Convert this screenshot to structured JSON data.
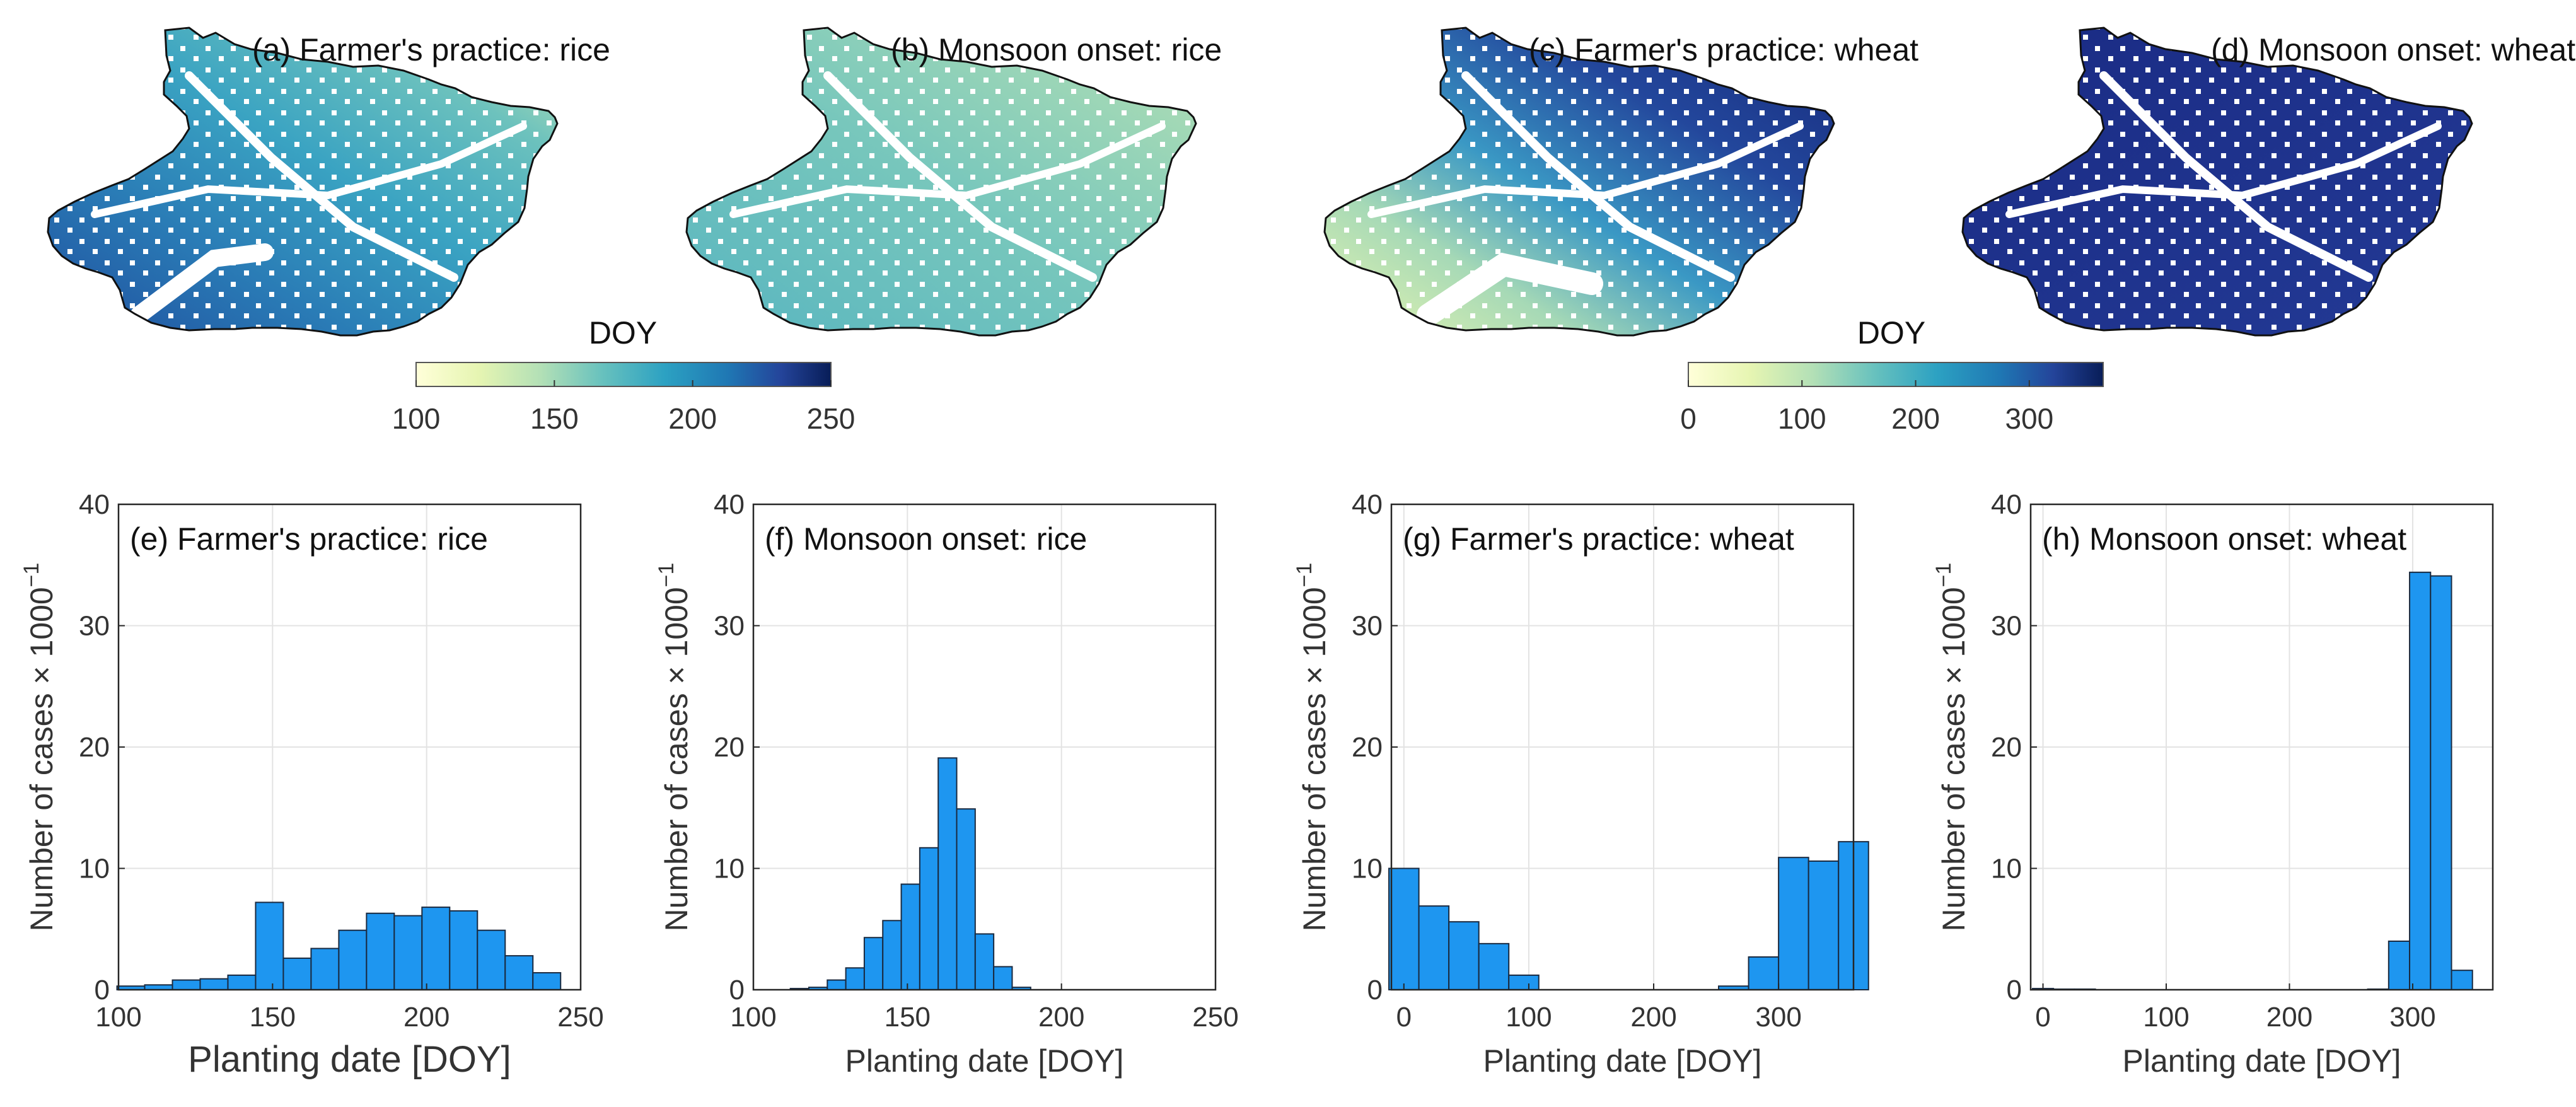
{
  "colorbars": [
    {
      "label": "DOY",
      "ticks": [
        "100",
        "150",
        "200",
        "250"
      ],
      "min": 100,
      "max": 250
    },
    {
      "label": "DOY",
      "ticks": [
        "0",
        "100",
        "200",
        "300"
      ],
      "min": 0,
      "max": 365
    }
  ],
  "colormap": [
    "#ffffd9",
    "#edf8b1",
    "#c7e9b4",
    "#7fcdbb",
    "#41b6c4",
    "#1d91c0",
    "#225ea8",
    "#253494",
    "#081d58"
  ],
  "maps": [
    {
      "title": "(a) Farmer's practice: rice",
      "scale": 0
    },
    {
      "title": "(b) Monsoon onset: rice",
      "scale": 0
    },
    {
      "title": "(c) Farmer's practice: wheat",
      "scale": 1
    },
    {
      "title": "(d) Monsoon onset: wheat",
      "scale": 1
    }
  ],
  "chart_data": [
    {
      "type": "bar",
      "title": "(e) Farmer's practice: rice",
      "xlabel": "Planting date [DOY]",
      "ylabel": "Number of cases × 1000",
      "ylabel_exp": "−1",
      "xlim": [
        100,
        250
      ],
      "ylim": [
        0,
        40
      ],
      "xticks": [
        100,
        150,
        200,
        250
      ],
      "yticks": [
        0,
        10,
        20,
        30,
        40
      ],
      "bin_width": 9,
      "x": [
        104,
        113,
        122,
        131,
        140,
        149,
        158,
        167,
        176,
        185,
        194,
        203,
        212,
        221,
        230,
        239
      ],
      "values": [
        0.3,
        0.4,
        0.8,
        0.9,
        1.2,
        7.2,
        2.6,
        3.4,
        4.9,
        6.3,
        6.1,
        6.8,
        6.5,
        4.9,
        2.8,
        1.4
      ]
    },
    {
      "type": "bar",
      "title": "(f) Monsoon onset: rice",
      "xlabel": "Planting date [DOY]",
      "ylabel": "Number of cases × 1000",
      "ylabel_exp": "−1",
      "xlim": [
        100,
        250
      ],
      "ylim": [
        0,
        40
      ],
      "xticks": [
        100,
        150,
        200,
        250
      ],
      "yticks": [
        0,
        10,
        20,
        30,
        40
      ],
      "bin_width": 6,
      "x": [
        115,
        121,
        127,
        133,
        139,
        145,
        151,
        157,
        163,
        169,
        175,
        181,
        187
      ],
      "values": [
        0.1,
        0.2,
        0.8,
        1.8,
        4.3,
        5.7,
        8.7,
        11.7,
        19.1,
        14.9,
        4.6,
        1.9,
        0.2
      ]
    },
    {
      "type": "bar",
      "title": "(g) Farmer's practice: wheat",
      "xlabel": "Planting date [DOY]",
      "ylabel": "Number of cases × 1000",
      "ylabel_exp": "−1",
      "xlim": [
        -10,
        360
      ],
      "ylim": [
        0,
        40
      ],
      "xticks": [
        0,
        100,
        200,
        300
      ],
      "yticks": [
        0,
        10,
        20,
        30,
        40
      ],
      "bin_width": 24,
      "x": [
        0,
        24,
        48,
        72,
        96,
        120,
        144,
        168,
        192,
        216,
        240,
        264,
        288,
        312,
        336,
        360
      ],
      "values": [
        10.0,
        6.9,
        5.6,
        3.8,
        1.2,
        0,
        0,
        0,
        0,
        0,
        0,
        0.3,
        2.7,
        10.9,
        10.6,
        12.2
      ]
    },
    {
      "type": "bar",
      "title": "(h) Monsoon onset: wheat",
      "xlabel": "Planting date [DOY]",
      "ylabel": "Number of cases × 1000",
      "ylabel_exp": "−1",
      "xlim": [
        -10,
        365
      ],
      "ylim": [
        0,
        40
      ],
      "xticks": [
        0,
        100,
        200,
        300
      ],
      "yticks": [
        0,
        10,
        20,
        30,
        40
      ],
      "bin_width": 17,
      "x": [
        0,
        17,
        34,
        51,
        68,
        85,
        102,
        119,
        136,
        153,
        170,
        187,
        204,
        221,
        238,
        255,
        272,
        289,
        306,
        323,
        340
      ],
      "values": [
        0.1,
        0.05,
        0.05,
        0,
        0,
        0,
        0,
        0,
        0,
        0,
        0,
        0,
        0,
        0,
        0,
        0,
        0.05,
        4.0,
        34.4,
        34.1,
        1.6
      ]
    }
  ]
}
